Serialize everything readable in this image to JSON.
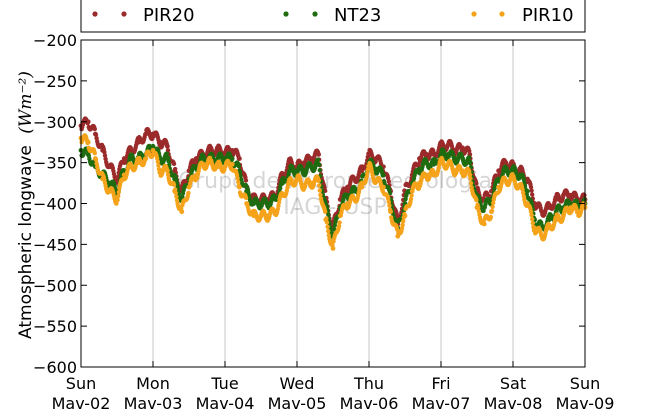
{
  "chart_data": {
    "type": "scatter",
    "ylabel": "Atmospheric longwave",
    "ylabel_unit": "(Wm⁻²)",
    "ylim": [
      -600,
      -200
    ],
    "yticks": [
      -200,
      -250,
      -300,
      -350,
      -400,
      -450,
      -500,
      -550,
      -600
    ],
    "xlim": [
      0,
      7
    ],
    "xticks": [
      {
        "x": 0,
        "day": "Sun",
        "date": "Mav-02"
      },
      {
        "x": 1,
        "day": "Mon",
        "date": "Mav-03"
      },
      {
        "x": 2,
        "day": "Tue",
        "date": "Mav-04"
      },
      {
        "x": 3,
        "day": "Wed",
        "date": "Mav-05"
      },
      {
        "x": 4,
        "day": "Thu",
        "date": "Mav-06"
      },
      {
        "x": 5,
        "day": "Fri",
        "date": "Mav-07"
      },
      {
        "x": 6,
        "day": "Sat",
        "date": "Mav-08"
      },
      {
        "x": 7,
        "day": "Sun",
        "date": "Mav-09"
      }
    ],
    "grid": "vertical",
    "legend_position": "top",
    "watermark": [
      "Grupo de Micrometeorologia",
      "IAG - USP"
    ],
    "series": [
      {
        "name": "PIR20",
        "color": "#9b2a2a",
        "x": [
          0,
          0.1,
          0.2,
          0.3,
          0.4,
          0.5,
          0.6,
          0.7,
          0.8,
          0.9,
          1,
          1.1,
          1.2,
          1.3,
          1.4,
          1.5,
          1.6,
          1.7,
          1.8,
          1.9,
          2,
          2.1,
          2.2,
          2.3,
          2.4,
          2.5,
          2.6,
          2.7,
          2.8,
          2.9,
          3,
          3.1,
          3.2,
          3.3,
          3.4,
          3.5,
          3.6,
          3.7,
          3.8,
          3.9,
          4,
          4.1,
          4.2,
          4.3,
          4.4,
          4.5,
          4.6,
          4.7,
          4.8,
          4.9,
          5,
          5.1,
          5.2,
          5.3,
          5.4,
          5.5,
          5.6,
          5.7,
          5.8,
          5.9,
          6,
          6.1,
          6.2,
          6.3,
          6.4,
          6.5,
          6.6,
          6.7,
          6.8,
          6.9,
          7
        ],
        "y": [
          -305,
          -300,
          -315,
          -335,
          -355,
          -370,
          -345,
          -335,
          -325,
          -315,
          -315,
          -325,
          -330,
          -360,
          -385,
          -360,
          -345,
          -340,
          -335,
          -335,
          -338,
          -335,
          -345,
          -380,
          -395,
          -395,
          -395,
          -390,
          -365,
          -350,
          -355,
          -350,
          -345,
          -340,
          -395,
          -430,
          -395,
          -380,
          -370,
          -360,
          -340,
          -345,
          -355,
          -385,
          -425,
          -385,
          -365,
          -345,
          -340,
          -340,
          -330,
          -328,
          -335,
          -332,
          -340,
          -385,
          -395,
          -385,
          -360,
          -350,
          -355,
          -360,
          -370,
          -400,
          -410,
          -405,
          -395,
          -390,
          -390,
          -395,
          -395
        ]
      },
      {
        "name": "NT23",
        "color": "#1f6b10",
        "x": [
          0,
          0.1,
          0.2,
          0.3,
          0.4,
          0.5,
          0.6,
          0.7,
          0.8,
          0.9,
          1,
          1.1,
          1.2,
          1.3,
          1.4,
          1.5,
          1.6,
          1.7,
          1.8,
          1.9,
          2,
          2.1,
          2.2,
          2.3,
          2.4,
          2.5,
          2.6,
          2.7,
          2.8,
          2.9,
          3,
          3.1,
          3.2,
          3.3,
          3.4,
          3.5,
          3.6,
          3.7,
          3.8,
          3.9,
          4,
          4.1,
          4.2,
          4.3,
          4.4,
          4.5,
          4.6,
          4.7,
          4.8,
          4.9,
          5,
          5.1,
          5.2,
          5.3,
          5.4,
          5.5,
          5.6,
          5.7,
          5.8,
          5.9,
          6,
          6.1,
          6.2,
          6.3,
          6.4,
          6.5,
          6.6,
          6.7,
          6.8,
          6.9,
          7
        ],
        "y": [
          -335,
          -340,
          -355,
          -365,
          -375,
          -385,
          -360,
          -345,
          -345,
          -340,
          -330,
          -345,
          -345,
          -370,
          -395,
          -370,
          -355,
          -345,
          -345,
          -345,
          -345,
          -345,
          -360,
          -385,
          -400,
          -400,
          -400,
          -395,
          -375,
          -360,
          -360,
          -360,
          -355,
          -352,
          -405,
          -440,
          -405,
          -390,
          -385,
          -375,
          -350,
          -358,
          -365,
          -395,
          -430,
          -400,
          -375,
          -358,
          -350,
          -352,
          -340,
          -340,
          -345,
          -345,
          -350,
          -395,
          -405,
          -395,
          -370,
          -360,
          -360,
          -365,
          -385,
          -420,
          -430,
          -420,
          -410,
          -405,
          -400,
          -403,
          -400
        ]
      },
      {
        "name": "PIR10",
        "color": "#f5a31a",
        "x": [
          0,
          0.1,
          0.2,
          0.3,
          0.4,
          0.5,
          0.6,
          0.7,
          0.8,
          0.9,
          1,
          1.1,
          1.2,
          1.3,
          1.4,
          1.5,
          1.6,
          1.7,
          1.8,
          1.9,
          2,
          2.1,
          2.2,
          2.3,
          2.4,
          2.5,
          2.6,
          2.7,
          2.8,
          2.9,
          3,
          3.1,
          3.2,
          3.3,
          3.4,
          3.5,
          3.6,
          3.7,
          3.8,
          3.9,
          4,
          4.1,
          4.2,
          4.3,
          4.4,
          4.5,
          4.6,
          4.7,
          4.8,
          4.9,
          5,
          5.1,
          5.2,
          5.3,
          5.4,
          5.5,
          5.6,
          5.7,
          5.8,
          5.9,
          6,
          6.1,
          6.2,
          6.3,
          6.4,
          6.5,
          6.6,
          6.7,
          6.8,
          6.9,
          7
        ],
        "y": [
          -320,
          -325,
          -345,
          -370,
          -385,
          -395,
          -365,
          -355,
          -350,
          -345,
          -335,
          -360,
          -360,
          -385,
          -410,
          -380,
          -365,
          -352,
          -350,
          -355,
          -355,
          -352,
          -380,
          -400,
          -415,
          -415,
          -415,
          -410,
          -390,
          -375,
          -370,
          -378,
          -375,
          -372,
          -420,
          -455,
          -415,
          -400,
          -395,
          -380,
          -355,
          -372,
          -380,
          -410,
          -440,
          -415,
          -385,
          -375,
          -365,
          -365,
          -350,
          -352,
          -360,
          -360,
          -365,
          -405,
          -425,
          -410,
          -380,
          -372,
          -370,
          -380,
          -400,
          -430,
          -440,
          -430,
          -420,
          -415,
          -405,
          -410,
          -405
        ]
      }
    ]
  }
}
